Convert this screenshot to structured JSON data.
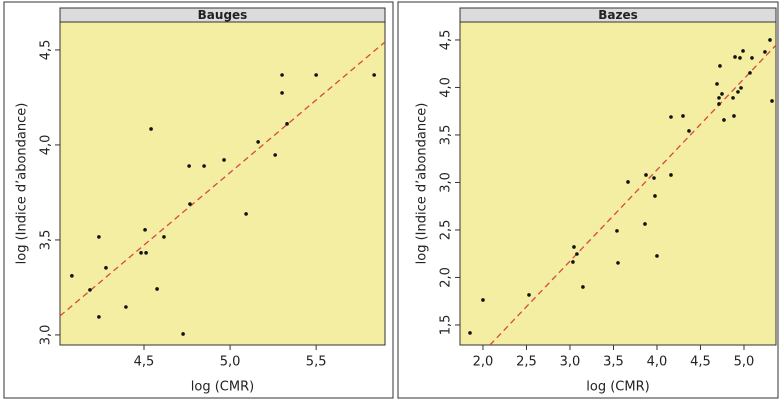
{
  "chart_data": [
    {
      "type": "scatter",
      "title": "Bauges",
      "xlabel": "log (CMR)",
      "ylabel": "log (Indice d’abondance)",
      "background": "#f4eea2",
      "color": "#111111",
      "x": [
        4.081,
        4.186,
        4.238,
        4.238,
        4.279,
        4.395,
        4.483,
        4.512,
        4.506,
        4.541,
        4.576,
        4.616,
        4.727,
        4.762,
        4.767,
        4.849,
        4.965,
        5.093,
        5.163,
        5.262,
        5.302,
        5.302,
        5.331,
        5.5,
        5.837
      ],
      "values": [
        3.311,
        3.237,
        3.516,
        3.095,
        3.353,
        3.147,
        3.432,
        3.432,
        3.553,
        4.084,
        3.242,
        3.516,
        3.005,
        3.889,
        3.689,
        3.889,
        3.921,
        3.637,
        4.016,
        3.947,
        4.368,
        4.274,
        4.111,
        4.368,
        4.368
      ],
      "fit": {
        "x": [
          4.012,
          5.9
        ],
        "values": [
          3.1,
          4.542
        ],
        "color": "#d9473f"
      },
      "xlim": [
        4.012,
        5.9
      ],
      "ylim": [
        2.947,
        4.647
      ],
      "xticks": [
        {
          "value": 4.5,
          "label": "4,5"
        },
        {
          "value": 5.0,
          "label": "5,0"
        },
        {
          "value": 5.5,
          "label": "5,5"
        }
      ],
      "yticks": [
        {
          "value": 3.0,
          "label": "3,0"
        },
        {
          "value": 3.5,
          "label": "3,5"
        },
        {
          "value": 4.0,
          "label": "4,0"
        },
        {
          "value": 4.5,
          "label": "4,5"
        }
      ]
    },
    {
      "type": "scatter",
      "title": "Bazes",
      "xlabel": "log (CMR)",
      "ylabel": "log (Indice d’abondance)",
      "background": "#f4eea2",
      "color": "#111111",
      "x": [
        1.851,
        2.0,
        2.529,
        3.034,
        3.046,
        3.08,
        3.149,
        3.54,
        3.552,
        3.667,
        3.862,
        3.874,
        3.966,
        3.977,
        4.0,
        4.161,
        4.161,
        4.299,
        4.368,
        4.69,
        4.713,
        4.713,
        4.724,
        4.747,
        4.77,
        4.874,
        4.885,
        4.897,
        4.931,
        4.954,
        4.966,
        4.989,
        5.069,
        5.092,
        5.241,
        5.299,
        5.322
      ],
      "values": [
        1.416,
        1.763,
        1.816,
        2.163,
        2.321,
        2.247,
        1.9,
        2.49,
        2.153,
        3.005,
        2.563,
        3.079,
        3.047,
        2.858,
        2.226,
        3.079,
        3.689,
        3.7,
        3.542,
        4.037,
        3.89,
        3.826,
        4.226,
        3.932,
        3.658,
        3.89,
        3.7,
        4.321,
        3.953,
        4.311,
        3.995,
        4.384,
        4.153,
        4.311,
        4.374,
        4.5,
        3.858
      ],
      "fit": {
        "x": [
          2.08,
          5.368
        ],
        "values": [
          1.289,
          4.445
        ],
        "color": "#d9473f"
      },
      "xlim": [
        1.736,
        5.368
      ],
      "ylim": [
        1.289,
        4.689
      ],
      "xticks": [
        {
          "value": 2.0,
          "label": "2,0"
        },
        {
          "value": 2.5,
          "label": "2,5"
        },
        {
          "value": 3.0,
          "label": "3,0"
        },
        {
          "value": 3.5,
          "label": "3,5"
        },
        {
          "value": 4.0,
          "label": "4,0"
        },
        {
          "value": 4.5,
          "label": "4,5"
        },
        {
          "value": 5.0,
          "label": "5,0"
        }
      ],
      "yticks": [
        {
          "value": 1.5,
          "label": "1,5"
        },
        {
          "value": 2.0,
          "label": "2,0"
        },
        {
          "value": 2.5,
          "label": "2,5"
        },
        {
          "value": 3.0,
          "label": "3,0"
        },
        {
          "value": 3.5,
          "label": "3,5"
        },
        {
          "value": 4.0,
          "label": "4,0"
        },
        {
          "value": 4.5,
          "label": "4,5"
        }
      ]
    }
  ]
}
